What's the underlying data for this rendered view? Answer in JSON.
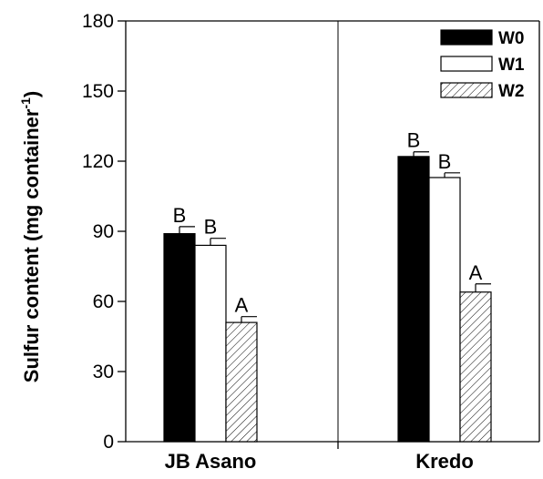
{
  "chart_data": {
    "type": "bar",
    "title": "",
    "ylabel": "Sulfur content (mg container",
    "ylabel_superscript": "-1",
    "ylabel_close": ")",
    "ylim": [
      0,
      180
    ],
    "yticks": [
      "0",
      "30",
      "60",
      "90",
      "120",
      "150",
      "180"
    ],
    "categories": [
      "JB Asano",
      "Kredo"
    ],
    "series": [
      {
        "name": "W0",
        "fill": "solid",
        "color": "#000000",
        "values": [
          89,
          122
        ],
        "errors": [
          3,
          2
        ],
        "letters": [
          "B",
          "B"
        ]
      },
      {
        "name": "W1",
        "fill": "open",
        "color": "#ffffff",
        "values": [
          84,
          113
        ],
        "errors": [
          3,
          2
        ],
        "letters": [
          "B",
          "B"
        ]
      },
      {
        "name": "W2",
        "fill": "hatched",
        "color": "#ffffff",
        "values": [
          51,
          64
        ],
        "errors": [
          2.5,
          3.5
        ],
        "letters": [
          "A",
          "A"
        ]
      }
    ],
    "legend_position": "top-right",
    "grid": false
  }
}
